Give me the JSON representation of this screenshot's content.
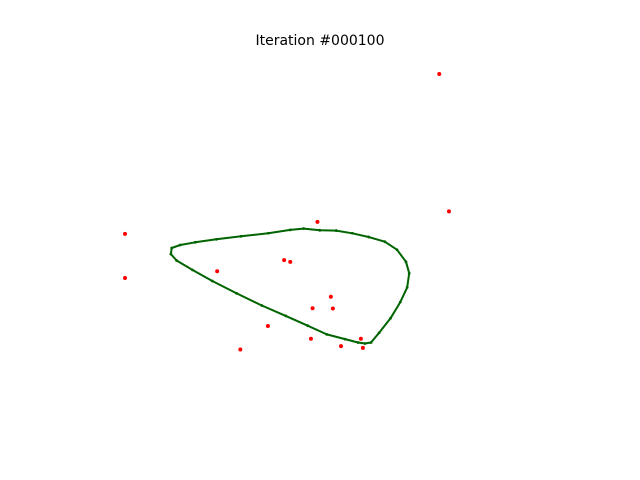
{
  "chart_data": {
    "type": "scatter",
    "title": "Iteration #000100",
    "xlabel": "",
    "ylabel": "",
    "axes_visible": false,
    "grid": false,
    "xlim": [
      0,
      100
    ],
    "ylim": [
      0,
      100
    ],
    "colors": {
      "points": "#ff0000",
      "contour": "#006400"
    },
    "series": [
      {
        "kind": "points",
        "points": [
          [
            77.4,
            100.0
          ],
          [
            79.8,
            59.1
          ],
          [
            0.0,
            52.4
          ],
          [
            0.0,
            39.3
          ],
          [
            47.4,
            56.0
          ],
          [
            39.2,
            44.6
          ],
          [
            40.7,
            44.1
          ],
          [
            22.7,
            41.3
          ],
          [
            50.7,
            33.7
          ],
          [
            46.2,
            30.3
          ],
          [
            51.2,
            30.2
          ],
          [
            35.2,
            25.0
          ],
          [
            45.8,
            21.2
          ],
          [
            58.1,
            21.2
          ],
          [
            53.2,
            19.0
          ],
          [
            58.6,
            18.5
          ],
          [
            28.4,
            18.0
          ]
        ]
      },
      {
        "kind": "contour",
        "points": [
          [
            48.0,
            53.5
          ],
          [
            52.0,
            53.4
          ],
          [
            56.0,
            52.6
          ],
          [
            60.0,
            51.5
          ],
          [
            64.0,
            50.1
          ],
          [
            67.0,
            47.7
          ],
          [
            69.2,
            44.1
          ],
          [
            70.0,
            40.7
          ],
          [
            69.5,
            36.5
          ],
          [
            67.8,
            32.1
          ],
          [
            65.4,
            27.3
          ],
          [
            62.6,
            23.0
          ],
          [
            60.6,
            20.1
          ],
          [
            59.1,
            19.8
          ],
          [
            57.4,
            20.1
          ],
          [
            54.2,
            21.1
          ],
          [
            49.7,
            22.5
          ],
          [
            45.0,
            25.1
          ],
          [
            39.6,
            28.0
          ],
          [
            33.7,
            31.1
          ],
          [
            27.5,
            34.7
          ],
          [
            21.5,
            38.4
          ],
          [
            16.6,
            41.7
          ],
          [
            12.7,
            44.5
          ],
          [
            11.3,
            46.4
          ],
          [
            11.5,
            48.2
          ],
          [
            13.6,
            49.1
          ],
          [
            17.3,
            49.9
          ],
          [
            22.5,
            50.8
          ],
          [
            28.6,
            51.7
          ],
          [
            35.3,
            52.6
          ],
          [
            40.7,
            53.6
          ],
          [
            44.0,
            54.0
          ],
          [
            48.0,
            53.5
          ]
        ]
      }
    ]
  }
}
